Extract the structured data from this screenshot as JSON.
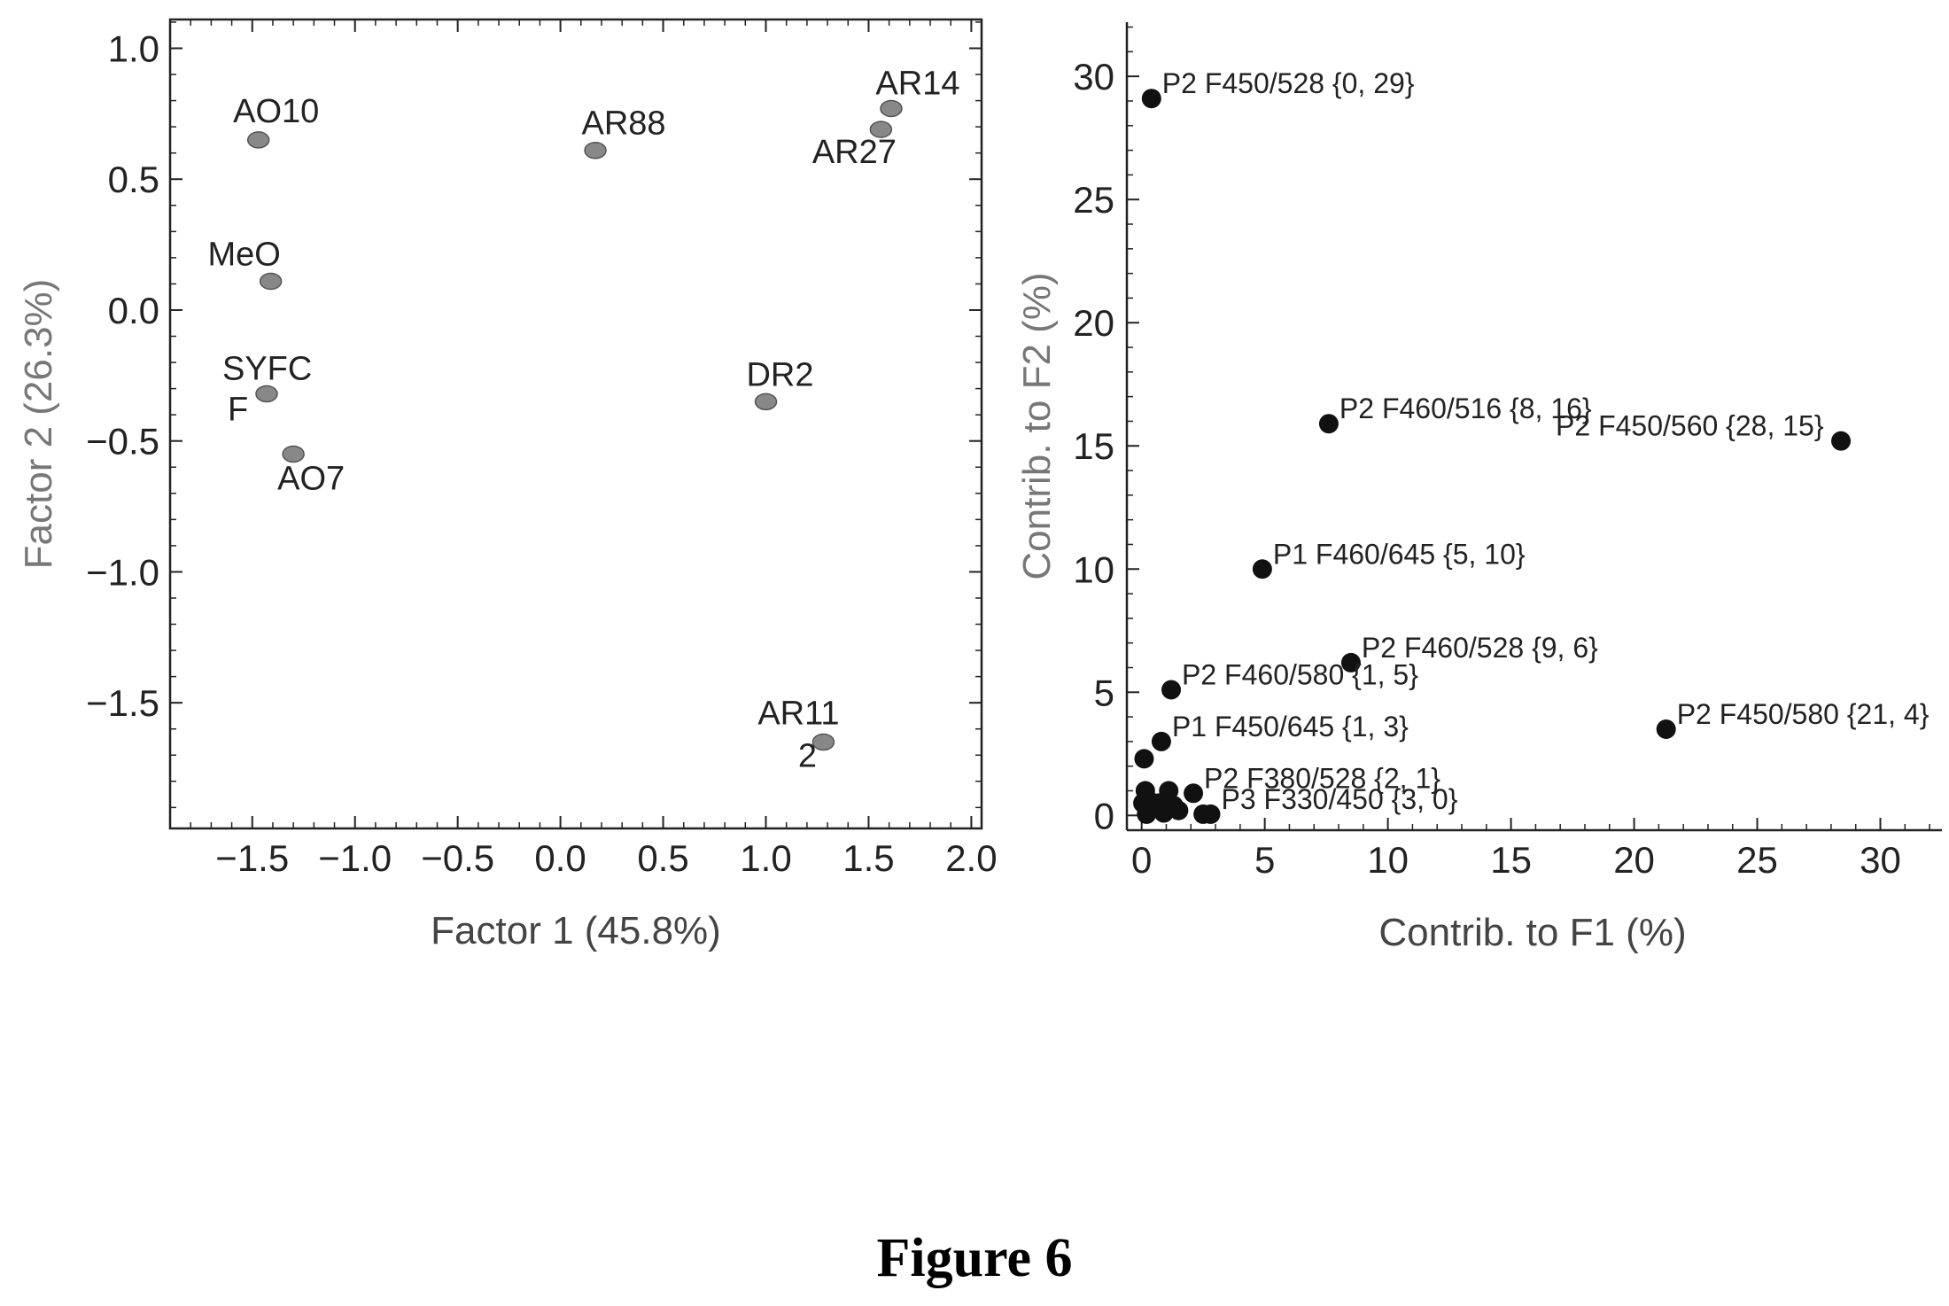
{
  "figure_caption": "Figure 6",
  "chart_data": [
    {
      "type": "scatter",
      "xlabel": "Factor 1 (45.8%)",
      "ylabel": "Factor 2 (26.3%)",
      "xlim": [
        -1.9,
        2.05
      ],
      "ylim": [
        -1.98,
        1.11
      ],
      "xticks": [
        -1.5,
        -1.0,
        -0.5,
        0.0,
        0.5,
        1.0,
        1.5,
        2.0
      ],
      "xtick_labels": [
        "−1.5",
        "−1.0",
        "−0.5",
        "0.0",
        "0.5",
        "1.0",
        "1.5",
        "2.0"
      ],
      "yticks": [
        1.0,
        0.5,
        0.0,
        -0.5,
        -1.0,
        -1.5
      ],
      "ytick_labels": [
        "1.0",
        "0.5",
        "0.0",
        "−0.5",
        "−1.0",
        "−1.5"
      ],
      "grid": false,
      "point_color": "#888888",
      "points": [
        {
          "label": "AO10",
          "x": -1.47,
          "y": 0.65
        },
        {
          "label": "AR88",
          "x": 0.17,
          "y": 0.61
        },
        {
          "label": "AR14",
          "x": 1.61,
          "y": 0.77
        },
        {
          "label": "AR27",
          "x": 1.56,
          "y": 0.69
        },
        {
          "label": "MeO",
          "x": -1.41,
          "y": 0.11
        },
        {
          "label": "SYFC F",
          "label_lines": [
            "SYFC",
            "F"
          ],
          "x": -1.43,
          "y": -0.32
        },
        {
          "label": "AO7",
          "x": -1.3,
          "y": -0.55
        },
        {
          "label": "DR2",
          "x": 1.0,
          "y": -0.35
        },
        {
          "label": "AR11 2",
          "label_lines": [
            "AR11",
            "2"
          ],
          "x": 1.28,
          "y": -1.65
        }
      ]
    },
    {
      "type": "scatter",
      "xlabel": "Contrib. to F1 (%)",
      "ylabel": "Contrib. to F2 (%)",
      "xlim": [
        -0.6,
        32.5
      ],
      "ylim": [
        -0.6,
        32.2
      ],
      "xticks": [
        0,
        5,
        10,
        15,
        20,
        25,
        30
      ],
      "xtick_labels": [
        "0",
        "5",
        "10",
        "15",
        "20",
        "25",
        "30"
      ],
      "yticks": [
        0,
        5,
        10,
        15,
        20,
        25,
        30
      ],
      "ytick_labels": [
        "0",
        "5",
        "10",
        "15",
        "20",
        "25",
        "30"
      ],
      "grid": false,
      "point_color": "#111111",
      "labeled_points": [
        {
          "label": "P2 F450/528 {0, 29}",
          "x": 0.4,
          "y": 29.1
        },
        {
          "label": "P2 F460/516 {8, 16}",
          "x": 7.6,
          "y": 15.9
        },
        {
          "label": "P2 F450/560 {28, 15}",
          "x": 28.4,
          "y": 15.2
        },
        {
          "label": "P1 F460/645 {5, 10}",
          "x": 4.9,
          "y": 10.0
        },
        {
          "label": "P2 F460/528 {9, 6}",
          "x": 8.5,
          "y": 6.2
        },
        {
          "label": "P2 F460/580 {1, 5}",
          "x": 1.2,
          "y": 5.1
        },
        {
          "label": "P1 F450/645 {1, 3}",
          "x": 0.8,
          "y": 3.0
        },
        {
          "label": "P2 F450/580 {21, 4}",
          "x": 21.3,
          "y": 3.5
        },
        {
          "label": "P2 F380/528 {2, 1}",
          "x": 2.1,
          "y": 0.9
        },
        {
          "label": "P3 F330/450 {3, 0}",
          "x": 2.8,
          "y": 0.05
        }
      ],
      "unlabeled_points": [
        {
          "x": 0.1,
          "y": 2.3
        },
        {
          "x": 0.15,
          "y": 1.0
        },
        {
          "x": 0.3,
          "y": 0.6
        },
        {
          "x": 0.5,
          "y": 0.3
        },
        {
          "x": 0.7,
          "y": 0.5
        },
        {
          "x": 1.1,
          "y": 1.0
        },
        {
          "x": 1.5,
          "y": 0.2
        },
        {
          "x": 0.2,
          "y": 0.05
        },
        {
          "x": 0.9,
          "y": 0.1
        },
        {
          "x": 2.5,
          "y": 0.05
        },
        {
          "x": 0.05,
          "y": 0.5
        },
        {
          "x": 1.3,
          "y": 0.4
        }
      ]
    }
  ]
}
